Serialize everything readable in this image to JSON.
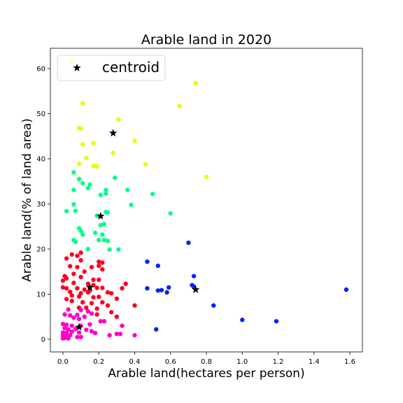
{
  "chart_data": {
    "type": "scatter",
    "title": "Arable land in 2020",
    "xlabel": "Arable land(hectares per person)",
    "ylabel": "Arable land(% of land area)",
    "xlim": [
      -0.07,
      1.67
    ],
    "ylim": [
      -2.8,
      64.5
    ],
    "xticks": [
      "0.0",
      "0.2",
      "0.4",
      "0.6",
      "0.8",
      "1.0",
      "1.2",
      "1.4",
      "1.6"
    ],
    "yticks": [
      "0",
      "10",
      "20",
      "30",
      "40",
      "50",
      "60"
    ],
    "grid": false,
    "legend": {
      "placement": "upper-left",
      "entries": [
        "centroid"
      ]
    },
    "colors": {
      "cluster_high": "#e6ff00",
      "cluster_upper": "#00ff88",
      "cluster_mid": "#ff0022",
      "cluster_low": "#ff00cc",
      "cluster_wide": "#0022ff",
      "centroid": "#000000"
    },
    "series": [
      {
        "color_key": "cluster_high",
        "points": [
          [
            0.05,
            61.5
          ],
          [
            0.41,
            59.9
          ],
          [
            0.74,
            56.8
          ],
          [
            0.11,
            52.3
          ],
          [
            0.65,
            51.7
          ],
          [
            0.31,
            48.7
          ],
          [
            0.09,
            46.8
          ],
          [
            0.1,
            46.7
          ],
          [
            0.4,
            44.0
          ],
          [
            0.11,
            43.2
          ],
          [
            0.17,
            43.5
          ],
          [
            0.28,
            41.3
          ],
          [
            0.13,
            40.2
          ],
          [
            0.09,
            38.9
          ],
          [
            0.17,
            38.4
          ],
          [
            0.19,
            38.3
          ],
          [
            0.46,
            38.8
          ],
          [
            0.8,
            36.0
          ]
        ]
      },
      {
        "color_key": "cluster_upper",
        "points": [
          [
            0.06,
            37.0
          ],
          [
            0.29,
            35.8
          ],
          [
            0.09,
            35.5
          ],
          [
            0.11,
            34.6
          ],
          [
            0.15,
            34.3
          ],
          [
            0.14,
            33.5
          ],
          [
            0.06,
            33.1
          ],
          [
            0.24,
            33.1
          ],
          [
            0.24,
            32.3
          ],
          [
            0.21,
            32.0
          ],
          [
            0.36,
            33.1
          ],
          [
            0.5,
            32.2
          ],
          [
            0.06,
            29.9
          ],
          [
            0.38,
            29.8
          ],
          [
            0.02,
            28.4
          ],
          [
            0.07,
            28.5
          ],
          [
            0.24,
            28.2
          ],
          [
            0.25,
            28.1
          ],
          [
            0.6,
            27.9
          ],
          [
            0.19,
            27.4
          ],
          [
            0.21,
            25.3
          ],
          [
            0.23,
            25.5
          ],
          [
            0.09,
            24.6
          ],
          [
            0.1,
            24.0
          ],
          [
            0.11,
            23.2
          ],
          [
            0.18,
            23.6
          ],
          [
            0.22,
            23.2
          ],
          [
            0.06,
            22.0
          ],
          [
            0.07,
            21.6
          ],
          [
            0.2,
            22.0
          ],
          [
            0.23,
            22.0
          ],
          [
            0.25,
            21.8
          ],
          [
            0.14,
            20.0
          ],
          [
            0.26,
            19.9
          ],
          [
            0.31,
            19.9
          ]
        ]
      },
      {
        "color_key": "cluster_mid",
        "points": [
          [
            0.1,
            19.2
          ],
          [
            0.05,
            18.8
          ],
          [
            0.08,
            18.5
          ],
          [
            0.02,
            17.9
          ],
          [
            0.1,
            17.5
          ],
          [
            0.2,
            17.2
          ],
          [
            0.22,
            17.0
          ],
          [
            0.2,
            16.3
          ],
          [
            0.04,
            16.2
          ],
          [
            0.08,
            16.0
          ],
          [
            0.16,
            16.0
          ],
          [
            0.22,
            15.5
          ],
          [
            0.12,
            15.0
          ],
          [
            0.06,
            14.5
          ],
          [
            0.01,
            14.0
          ],
          [
            0.1,
            13.8
          ],
          [
            0.02,
            13.5
          ],
          [
            0.17,
            13.2
          ],
          [
            0.2,
            13.2
          ],
          [
            0.0,
            13.0
          ],
          [
            0.06,
            12.5
          ],
          [
            0.14,
            12.3
          ],
          [
            0.35,
            12.3
          ],
          [
            0.17,
            12.0
          ],
          [
            0.0,
            11.5
          ],
          [
            0.02,
            11.3
          ],
          [
            0.08,
            11.3
          ],
          [
            0.12,
            11.0
          ],
          [
            0.15,
            10.8
          ],
          [
            0.19,
            11.4
          ],
          [
            0.22,
            11.4
          ],
          [
            0.33,
            11.3
          ],
          [
            0.04,
            10.5
          ],
          [
            0.1,
            10.2
          ],
          [
            0.14,
            10.4
          ],
          [
            0.25,
            10.4
          ],
          [
            0.27,
            10.2
          ],
          [
            0.05,
            9.7
          ],
          [
            0.09,
            9.5
          ],
          [
            0.17,
            9.3
          ],
          [
            0.2,
            9.4
          ],
          [
            0.3,
            9.0
          ],
          [
            0.02,
            8.9
          ],
          [
            0.05,
            8.5
          ],
          [
            0.11,
            8.2
          ],
          [
            0.16,
            8.0
          ],
          [
            0.22,
            8.2
          ],
          [
            0.25,
            7.5
          ],
          [
            0.4,
            7.5
          ],
          [
            0.09,
            7.0
          ],
          [
            0.13,
            7.0
          ],
          [
            0.19,
            6.8
          ],
          [
            0.27,
            6.0
          ],
          [
            0.3,
            5.0
          ],
          [
            0.19,
            5.5
          ]
        ]
      },
      {
        "color_key": "cluster_low",
        "points": [
          [
            0.03,
            6.6
          ],
          [
            0.1,
            6.5
          ],
          [
            0.14,
            6.2
          ],
          [
            0.16,
            5.7
          ],
          [
            0.01,
            5.5
          ],
          [
            0.04,
            5.3
          ],
          [
            0.08,
            5.4
          ],
          [
            0.12,
            5.0
          ],
          [
            0.06,
            4.8
          ],
          [
            0.09,
            4.5
          ],
          [
            0.21,
            4.0
          ],
          [
            0.23,
            4.0
          ],
          [
            0.33,
            3.0
          ],
          [
            0.0,
            3.4
          ],
          [
            0.02,
            3.2
          ],
          [
            0.05,
            3.0
          ],
          [
            0.1,
            3.0
          ],
          [
            0.15,
            3.3
          ],
          [
            0.01,
            2.5
          ],
          [
            0.03,
            2.2
          ],
          [
            0.07,
            2.3
          ],
          [
            0.13,
            2.1
          ],
          [
            0.16,
            1.8
          ],
          [
            0.0,
            1.5
          ],
          [
            0.02,
            1.5
          ],
          [
            0.05,
            1.7
          ],
          [
            0.09,
            1.5
          ],
          [
            0.18,
            1.4
          ],
          [
            0.3,
            1.2
          ],
          [
            0.32,
            1.2
          ],
          [
            0.0,
            0.8
          ],
          [
            0.02,
            0.7
          ],
          [
            0.04,
            0.9
          ],
          [
            0.08,
            0.5
          ],
          [
            0.1,
            0.5
          ],
          [
            0.26,
            0.9
          ],
          [
            0.4,
            0.9
          ],
          [
            0.0,
            0.2
          ],
          [
            0.01,
            0.3
          ],
          [
            0.03,
            0.2
          ]
        ]
      },
      {
        "color_key": "cluster_wide",
        "points": [
          [
            0.7,
            21.4
          ],
          [
            0.47,
            17.2
          ],
          [
            0.53,
            16.3
          ],
          [
            0.73,
            14.0
          ],
          [
            0.72,
            12.0
          ],
          [
            0.73,
            11.7
          ],
          [
            0.47,
            11.3
          ],
          [
            0.53,
            10.8
          ],
          [
            0.55,
            10.9
          ],
          [
            0.59,
            11.5
          ],
          [
            0.58,
            10.4
          ],
          [
            1.58,
            11.0
          ],
          [
            0.84,
            7.5
          ],
          [
            1.0,
            4.3
          ],
          [
            1.19,
            4.0
          ],
          [
            0.52,
            2.2
          ]
        ]
      },
      {
        "name": "centroid",
        "color_key": "centroid",
        "marker": "star",
        "points": [
          [
            0.28,
            45.7
          ],
          [
            0.21,
            27.3
          ],
          [
            0.15,
            11.5
          ],
          [
            0.09,
            2.7
          ],
          [
            0.74,
            11.0
          ]
        ]
      }
    ]
  }
}
